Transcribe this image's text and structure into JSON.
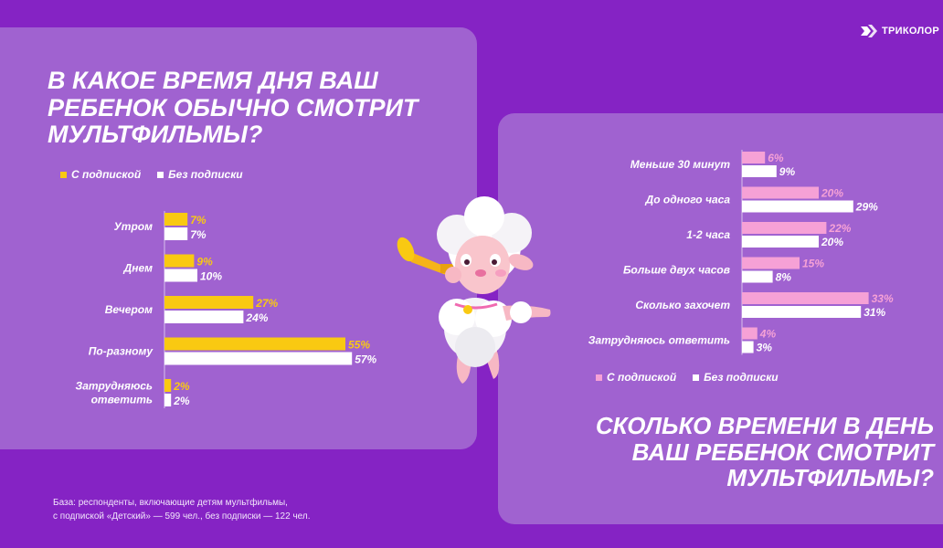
{
  "brand": {
    "logo_text": "ТРИКОЛОР"
  },
  "left": {
    "title": "В какое время дня ваш ребенок обычно смотрит мультфильмы?",
    "legend": {
      "with_sub": "С подпиской",
      "without_sub": "Без подписки"
    }
  },
  "right": {
    "title": "Сколько времени в день ваш ребенок смотрит мультфильмы?",
    "legend": {
      "with_sub": "С подпиской",
      "without_sub": "Без подписки"
    }
  },
  "footnote": {
    "line1": "База: респонденты,  включающие детям мультфильмы,",
    "line2": "с подпиской  «Детский»  — 599 чел., без подписки  — 122 чел."
  },
  "colors": {
    "background": "#8523c4",
    "panel": "#a062d0",
    "yellow": "#f9c912",
    "pink": "#f6a1d6",
    "white": "#ffffff"
  },
  "chart_data": [
    {
      "type": "bar",
      "orientation": "horizontal",
      "categories": [
        "Утром",
        "Днем",
        "Вечером",
        "По-разному",
        "Затрудняюсь ответить"
      ],
      "series": [
        {
          "name": "С подпиской",
          "values": [
            7,
            9,
            27,
            55,
            2
          ],
          "labels": [
            "7%",
            "9%",
            "27%",
            "55%",
            "2%"
          ],
          "color": "#f9c912"
        },
        {
          "name": "Без подписки",
          "values": [
            7,
            10,
            24,
            57,
            2
          ],
          "labels": [
            "7%",
            "10%",
            "24%",
            "57%",
            "2%"
          ],
          "color": "#ffffff"
        }
      ],
      "xlim": [
        0,
        60
      ],
      "legend": "top-left"
    },
    {
      "type": "bar",
      "orientation": "horizontal",
      "categories": [
        "Меньше 30 минут",
        "До одного часа",
        "1-2 часа",
        "Больше двух часов",
        "Сколько захочет",
        "Затрудняюсь ответить"
      ],
      "series": [
        {
          "name": "С подпиской",
          "values": [
            6,
            20,
            22,
            15,
            33,
            4
          ],
          "labels": [
            "6%",
            "20%",
            "22%",
            "15%",
            "33%",
            "4%"
          ],
          "color": "#f6a1d6"
        },
        {
          "name": "Без подписки",
          "values": [
            9,
            29,
            20,
            8,
            31,
            3
          ],
          "labels": [
            "9%",
            "29%",
            "20%",
            "8%",
            "31%",
            "3%"
          ],
          "color": "#ffffff"
        }
      ],
      "xlim": [
        0,
        35
      ],
      "legend": "bottom-left"
    }
  ]
}
